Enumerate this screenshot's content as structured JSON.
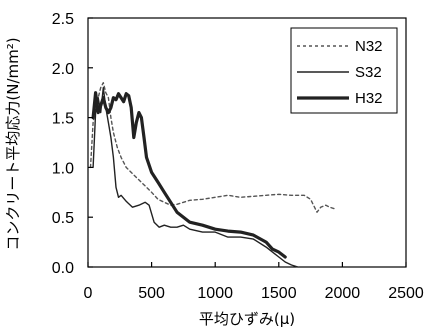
{
  "chart_data": {
    "type": "line",
    "title": "",
    "xlabel": "平均ひずみ(μ)",
    "ylabel": "コンクリート平均応力(N/mm²)",
    "xlim": [
      0,
      2500
    ],
    "ylim": [
      0,
      2.5
    ],
    "xticks": [
      0,
      500,
      1000,
      1500,
      2000,
      2500
    ],
    "yticks": [
      "0.0",
      "0.5",
      "1.0",
      "1.5",
      "2.0",
      "2.5"
    ],
    "grid": false,
    "legend_position": "top-right",
    "series": [
      {
        "name": "N32",
        "style": "dotted",
        "color": "#555555",
        "points": [
          [
            20,
            1.0
          ],
          [
            40,
            1.45
          ],
          [
            60,
            1.6
          ],
          [
            80,
            1.7
          ],
          [
            100,
            1.8
          ],
          [
            120,
            1.85
          ],
          [
            140,
            1.75
          ],
          [
            160,
            1.7
          ],
          [
            180,
            1.5
          ],
          [
            200,
            1.35
          ],
          [
            230,
            1.2
          ],
          [
            260,
            1.1
          ],
          [
            300,
            1.0
          ],
          [
            340,
            0.95
          ],
          [
            380,
            0.9
          ],
          [
            420,
            0.85
          ],
          [
            460,
            0.8
          ],
          [
            500,
            0.75
          ],
          [
            550,
            0.68
          ],
          [
            600,
            0.65
          ],
          [
            650,
            0.62
          ],
          [
            700,
            0.63
          ],
          [
            750,
            0.65
          ],
          [
            800,
            0.67
          ],
          [
            900,
            0.68
          ],
          [
            1000,
            0.7
          ],
          [
            1100,
            0.72
          ],
          [
            1200,
            0.7
          ],
          [
            1300,
            0.71
          ],
          [
            1400,
            0.72
          ],
          [
            1500,
            0.73
          ],
          [
            1600,
            0.72
          ],
          [
            1700,
            0.72
          ],
          [
            1750,
            0.68
          ],
          [
            1800,
            0.55
          ],
          [
            1830,
            0.6
          ],
          [
            1870,
            0.62
          ],
          [
            1900,
            0.6
          ],
          [
            1950,
            0.58
          ]
        ]
      },
      {
        "name": "S32",
        "style": "solid",
        "color": "#222222",
        "points": [
          [
            40,
            1.0
          ],
          [
            60,
            1.55
          ],
          [
            80,
            1.7
          ],
          [
            100,
            1.55
          ],
          [
            120,
            1.8
          ],
          [
            140,
            1.6
          ],
          [
            160,
            1.45
          ],
          [
            180,
            1.3
          ],
          [
            200,
            1.1
          ],
          [
            220,
            0.8
          ],
          [
            240,
            0.7
          ],
          [
            260,
            0.72
          ],
          [
            300,
            0.66
          ],
          [
            350,
            0.6
          ],
          [
            400,
            0.62
          ],
          [
            450,
            0.65
          ],
          [
            480,
            0.62
          ],
          [
            520,
            0.45
          ],
          [
            560,
            0.4
          ],
          [
            600,
            0.42
          ],
          [
            650,
            0.4
          ],
          [
            700,
            0.4
          ],
          [
            750,
            0.42
          ],
          [
            800,
            0.38
          ],
          [
            900,
            0.35
          ],
          [
            1000,
            0.35
          ],
          [
            1100,
            0.3
          ],
          [
            1200,
            0.3
          ],
          [
            1300,
            0.28
          ],
          [
            1400,
            0.2
          ],
          [
            1500,
            0.1
          ],
          [
            1550,
            0.05
          ],
          [
            1600,
            0.02
          ],
          [
            1650,
            0.0
          ]
        ]
      },
      {
        "name": "H32",
        "style": "solid-bold",
        "color": "#222222",
        "points": [
          [
            40,
            1.5
          ],
          [
            60,
            1.75
          ],
          [
            80,
            1.55
          ],
          [
            100,
            1.62
          ],
          [
            120,
            1.7
          ],
          [
            140,
            1.6
          ],
          [
            160,
            1.55
          ],
          [
            180,
            1.6
          ],
          [
            200,
            1.7
          ],
          [
            220,
            1.68
          ],
          [
            240,
            1.74
          ],
          [
            260,
            1.7
          ],
          [
            280,
            1.66
          ],
          [
            300,
            1.74
          ],
          [
            320,
            1.72
          ],
          [
            340,
            1.6
          ],
          [
            360,
            1.3
          ],
          [
            380,
            1.45
          ],
          [
            400,
            1.55
          ],
          [
            420,
            1.5
          ],
          [
            440,
            1.3
          ],
          [
            460,
            1.1
          ],
          [
            500,
            0.95
          ],
          [
            550,
            0.85
          ],
          [
            600,
            0.75
          ],
          [
            650,
            0.65
          ],
          [
            700,
            0.55
          ],
          [
            750,
            0.5
          ],
          [
            800,
            0.45
          ],
          [
            900,
            0.42
          ],
          [
            1000,
            0.38
          ],
          [
            1100,
            0.36
          ],
          [
            1200,
            0.35
          ],
          [
            1300,
            0.32
          ],
          [
            1400,
            0.25
          ],
          [
            1450,
            0.18
          ],
          [
            1500,
            0.15
          ],
          [
            1550,
            0.1
          ]
        ]
      }
    ]
  }
}
